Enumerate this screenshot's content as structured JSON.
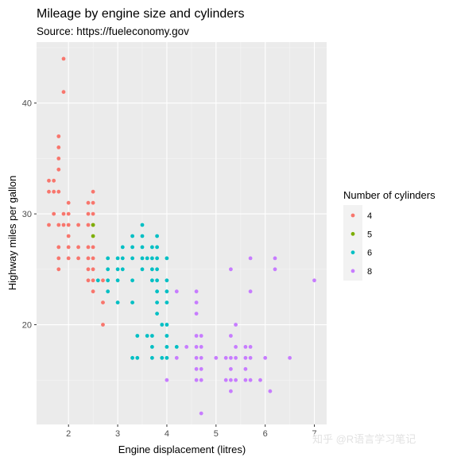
{
  "chart_data": {
    "type": "scatter",
    "title": "Mileage by engine size and cylinders",
    "subtitle": "Source: https://fueleconomy.gov",
    "xlabel": "Engine displacement (litres)",
    "ylabel": "Highway miles per gallon",
    "xlim": [
      1.35,
      7.25
    ],
    "ylim": [
      11,
      45.5
    ],
    "x_ticks": [
      2,
      3,
      4,
      5,
      6,
      7
    ],
    "y_ticks": [
      20,
      30,
      40
    ],
    "grid": true,
    "legend_position": "right",
    "legend_title": "Number of cylinders",
    "series": [
      {
        "name": "4",
        "color": "#F8766D",
        "points": [
          [
            1.6,
            33
          ],
          [
            1.6,
            32
          ],
          [
            1.6,
            29
          ],
          [
            1.7,
            33
          ],
          [
            1.7,
            32
          ],
          [
            1.7,
            30
          ],
          [
            1.8,
            37
          ],
          [
            1.8,
            36
          ],
          [
            1.8,
            35
          ],
          [
            1.8,
            34
          ],
          [
            1.8,
            32
          ],
          [
            1.8,
            29
          ],
          [
            1.8,
            27
          ],
          [
            1.8,
            26
          ],
          [
            1.8,
            25
          ],
          [
            1.9,
            44
          ],
          [
            1.9,
            41
          ],
          [
            1.9,
            30
          ],
          [
            1.9,
            29
          ],
          [
            2.0,
            31
          ],
          [
            2.0,
            30
          ],
          [
            2.0,
            29
          ],
          [
            2.0,
            28
          ],
          [
            2.0,
            27
          ],
          [
            2.0,
            26
          ],
          [
            2.2,
            29
          ],
          [
            2.2,
            27
          ],
          [
            2.2,
            26
          ],
          [
            2.4,
            31
          ],
          [
            2.4,
            30
          ],
          [
            2.4,
            29
          ],
          [
            2.4,
            27
          ],
          [
            2.4,
            26
          ],
          [
            2.4,
            25
          ],
          [
            2.4,
            24
          ],
          [
            2.5,
            32
          ],
          [
            2.5,
            31
          ],
          [
            2.5,
            30
          ],
          [
            2.5,
            29
          ],
          [
            2.5,
            27
          ],
          [
            2.5,
            26
          ],
          [
            2.5,
            25
          ],
          [
            2.5,
            24
          ],
          [
            2.5,
            23
          ],
          [
            2.7,
            24
          ],
          [
            2.7,
            22
          ],
          [
            2.7,
            20
          ]
        ]
      },
      {
        "name": "5",
        "color": "#7CAE00",
        "points": [
          [
            2.5,
            29
          ],
          [
            2.5,
            28
          ]
        ]
      },
      {
        "name": "6",
        "color": "#00BFC4",
        "points": [
          [
            2.6,
            24
          ],
          [
            2.8,
            26
          ],
          [
            2.8,
            25
          ],
          [
            2.8,
            24
          ],
          [
            2.8,
            23
          ],
          [
            3.0,
            26
          ],
          [
            3.0,
            25
          ],
          [
            3.0,
            24
          ],
          [
            3.0,
            22
          ],
          [
            3.1,
            27
          ],
          [
            3.1,
            26
          ],
          [
            3.1,
            25
          ],
          [
            3.3,
            28
          ],
          [
            3.3,
            27
          ],
          [
            3.3,
            26
          ],
          [
            3.3,
            24
          ],
          [
            3.3,
            22
          ],
          [
            3.3,
            17
          ],
          [
            3.4,
            19
          ],
          [
            3.4,
            17
          ],
          [
            3.5,
            29
          ],
          [
            3.5,
            28
          ],
          [
            3.5,
            27
          ],
          [
            3.5,
            26
          ],
          [
            3.5,
            25
          ],
          [
            3.6,
            26
          ],
          [
            3.6,
            19
          ],
          [
            3.7,
            27
          ],
          [
            3.7,
            26
          ],
          [
            3.7,
            25
          ],
          [
            3.7,
            24
          ],
          [
            3.7,
            19
          ],
          [
            3.7,
            18
          ],
          [
            3.7,
            17
          ],
          [
            3.8,
            28
          ],
          [
            3.8,
            27
          ],
          [
            3.8,
            26
          ],
          [
            3.8,
            25
          ],
          [
            3.8,
            24
          ],
          [
            3.8,
            23
          ],
          [
            3.8,
            22
          ],
          [
            3.8,
            21
          ],
          [
            3.9,
            20
          ],
          [
            3.9,
            17
          ],
          [
            4.0,
            26
          ],
          [
            4.0,
            24
          ],
          [
            4.0,
            23
          ],
          [
            4.0,
            22
          ],
          [
            4.0,
            20
          ],
          [
            4.0,
            19
          ],
          [
            4.0,
            18
          ],
          [
            4.0,
            17
          ],
          [
            4.2,
            18
          ]
        ]
      },
      {
        "name": "8",
        "color": "#C77CFF",
        "points": [
          [
            4.0,
            15
          ],
          [
            4.2,
            23
          ],
          [
            4.2,
            17
          ],
          [
            4.4,
            18
          ],
          [
            4.6,
            23
          ],
          [
            4.6,
            22
          ],
          [
            4.6,
            21
          ],
          [
            4.6,
            19
          ],
          [
            4.6,
            18
          ],
          [
            4.6,
            17
          ],
          [
            4.6,
            16
          ],
          [
            4.6,
            15
          ],
          [
            4.7,
            19
          ],
          [
            4.7,
            18
          ],
          [
            4.7,
            17
          ],
          [
            4.7,
            16
          ],
          [
            4.7,
            15
          ],
          [
            4.7,
            12
          ],
          [
            5.0,
            17
          ],
          [
            5.2,
            17
          ],
          [
            5.2,
            15
          ],
          [
            5.3,
            25
          ],
          [
            5.3,
            19
          ],
          [
            5.3,
            17
          ],
          [
            5.3,
            16
          ],
          [
            5.3,
            15
          ],
          [
            5.3,
            14
          ],
          [
            5.4,
            20
          ],
          [
            5.4,
            18
          ],
          [
            5.4,
            17
          ],
          [
            5.4,
            15
          ],
          [
            5.7,
            26
          ],
          [
            5.7,
            23
          ],
          [
            5.7,
            18
          ],
          [
            5.7,
            17
          ],
          [
            5.7,
            15
          ],
          [
            5.6,
            18
          ],
          [
            5.6,
            17
          ],
          [
            5.6,
            16
          ],
          [
            5.6,
            15
          ],
          [
            5.9,
            15
          ],
          [
            6.0,
            17
          ],
          [
            6.1,
            14
          ],
          [
            6.2,
            26
          ],
          [
            6.2,
            25
          ],
          [
            6.5,
            17
          ],
          [
            7.0,
            24
          ]
        ]
      }
    ]
  },
  "watermark": "知乎 @R语言学习笔记"
}
